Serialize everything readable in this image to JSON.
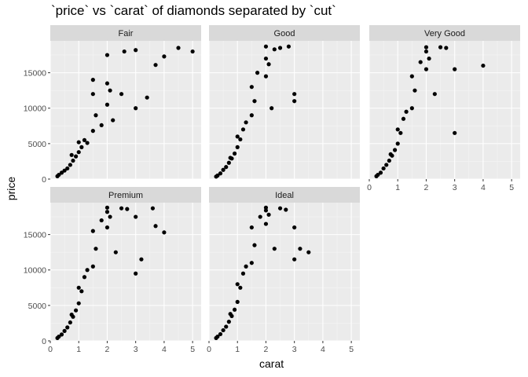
{
  "chart_data": {
    "type": "scatter",
    "title": "`price` vs `carat` of diamonds separated by `cut`",
    "xlabel": "carat",
    "ylabel": "price",
    "xlim": [
      0,
      5.3
    ],
    "ylim": [
      0,
      19500
    ],
    "x_ticks": [
      0,
      1,
      2,
      3,
      4,
      5
    ],
    "y_ticks": [
      0,
      5000,
      10000,
      15000
    ],
    "y_tick_labels": [
      "0",
      "5000",
      "10000",
      "15000"
    ],
    "grid": true,
    "point_color": "#000000",
    "panel_background": "#ebebeb",
    "strip_background": "#d9d9d9",
    "layout": {
      "ncol": 3,
      "nrow": 2
    },
    "series": [
      {
        "name": "Fair",
        "points": [
          [
            0.25,
            400
          ],
          [
            0.3,
            600
          ],
          [
            0.4,
            900
          ],
          [
            0.5,
            1200
          ],
          [
            0.6,
            1500
          ],
          [
            0.7,
            2000
          ],
          [
            0.8,
            2600
          ],
          [
            0.9,
            3200
          ],
          [
            1.0,
            3800
          ],
          [
            1.0,
            5200
          ],
          [
            1.1,
            4500
          ],
          [
            1.2,
            5500
          ],
          [
            1.5,
            6800
          ],
          [
            1.5,
            12000
          ],
          [
            1.5,
            14000
          ],
          [
            1.6,
            9000
          ],
          [
            2.0,
            10500
          ],
          [
            2.0,
            13500
          ],
          [
            2.0,
            17500
          ],
          [
            2.1,
            12500
          ],
          [
            2.5,
            12000
          ],
          [
            2.6,
            18000
          ],
          [
            3.0,
            10000
          ],
          [
            3.0,
            18200
          ],
          [
            3.4,
            11500
          ],
          [
            3.7,
            16100
          ],
          [
            4.0,
            17300
          ],
          [
            4.5,
            18500
          ],
          [
            5.0,
            18000
          ],
          [
            1.8,
            7600
          ],
          [
            1.3,
            5100
          ],
          [
            0.75,
            3400
          ],
          [
            2.2,
            8300
          ]
        ]
      },
      {
        "name": "Good",
        "points": [
          [
            0.25,
            350
          ],
          [
            0.3,
            500
          ],
          [
            0.4,
            800
          ],
          [
            0.5,
            1300
          ],
          [
            0.6,
            1700
          ],
          [
            0.7,
            2300
          ],
          [
            0.8,
            2900
          ],
          [
            0.9,
            3600
          ],
          [
            1.0,
            4500
          ],
          [
            1.0,
            6000
          ],
          [
            1.1,
            5600
          ],
          [
            1.2,
            7000
          ],
          [
            1.5,
            9000
          ],
          [
            1.5,
            13000
          ],
          [
            1.6,
            11000
          ],
          [
            2.0,
            14500
          ],
          [
            2.0,
            17000
          ],
          [
            2.0,
            18700
          ],
          [
            2.1,
            16200
          ],
          [
            2.3,
            18300
          ],
          [
            2.5,
            18500
          ],
          [
            2.8,
            18700
          ],
          [
            3.0,
            11000
          ],
          [
            3.0,
            12000
          ],
          [
            0.75,
            3000
          ],
          [
            1.3,
            8000
          ],
          [
            1.7,
            15000
          ],
          [
            2.2,
            10000
          ]
        ]
      },
      {
        "name": "Very Good",
        "points": [
          [
            0.25,
            400
          ],
          [
            0.3,
            600
          ],
          [
            0.4,
            900
          ],
          [
            0.5,
            1500
          ],
          [
            0.6,
            2000
          ],
          [
            0.7,
            2600
          ],
          [
            0.8,
            3300
          ],
          [
            0.9,
            4100
          ],
          [
            1.0,
            5000
          ],
          [
            1.0,
            7000
          ],
          [
            1.1,
            6500
          ],
          [
            1.2,
            8500
          ],
          [
            1.5,
            10000
          ],
          [
            1.5,
            14500
          ],
          [
            1.6,
            12500
          ],
          [
            2.0,
            15500
          ],
          [
            2.0,
            18000
          ],
          [
            2.0,
            18600
          ],
          [
            2.1,
            17000
          ],
          [
            2.5,
            18600
          ],
          [
            2.7,
            18500
          ],
          [
            3.0,
            15500
          ],
          [
            3.0,
            6500
          ],
          [
            4.0,
            16000
          ],
          [
            1.3,
            9500
          ],
          [
            1.8,
            16500
          ],
          [
            2.3,
            12000
          ],
          [
            0.75,
            3500
          ]
        ]
      },
      {
        "name": "Premium",
        "points": [
          [
            0.25,
            400
          ],
          [
            0.3,
            600
          ],
          [
            0.4,
            900
          ],
          [
            0.5,
            1400
          ],
          [
            0.6,
            1900
          ],
          [
            0.7,
            2600
          ],
          [
            0.8,
            3400
          ],
          [
            0.9,
            4300
          ],
          [
            1.0,
            5300
          ],
          [
            1.0,
            7500
          ],
          [
            1.1,
            7000
          ],
          [
            1.2,
            9000
          ],
          [
            1.5,
            10500
          ],
          [
            1.5,
            15500
          ],
          [
            1.6,
            13000
          ],
          [
            2.0,
            16000
          ],
          [
            2.0,
            18200
          ],
          [
            2.0,
            18800
          ],
          [
            2.1,
            17500
          ],
          [
            2.5,
            18700
          ],
          [
            2.7,
            18600
          ],
          [
            3.0,
            17500
          ],
          [
            3.0,
            9500
          ],
          [
            3.2,
            11500
          ],
          [
            3.6,
            18700
          ],
          [
            3.7,
            16200
          ],
          [
            4.0,
            15300
          ],
          [
            1.3,
            10000
          ],
          [
            1.8,
            17000
          ],
          [
            2.3,
            12500
          ],
          [
            0.75,
            3700
          ]
        ]
      },
      {
        "name": "Ideal",
        "points": [
          [
            0.25,
            400
          ],
          [
            0.3,
            600
          ],
          [
            0.4,
            950
          ],
          [
            0.5,
            1500
          ],
          [
            0.6,
            2000
          ],
          [
            0.7,
            2700
          ],
          [
            0.8,
            3500
          ],
          [
            0.9,
            4400
          ],
          [
            1.0,
            5500
          ],
          [
            1.0,
            8000
          ],
          [
            1.1,
            7500
          ],
          [
            1.2,
            9500
          ],
          [
            1.5,
            11000
          ],
          [
            1.5,
            16000
          ],
          [
            1.6,
            13500
          ],
          [
            2.0,
            16500
          ],
          [
            2.0,
            18400
          ],
          [
            2.0,
            18800
          ],
          [
            2.1,
            17800
          ],
          [
            2.5,
            18700
          ],
          [
            2.7,
            18500
          ],
          [
            3.0,
            16000
          ],
          [
            3.0,
            11500
          ],
          [
            3.2,
            13000
          ],
          [
            3.5,
            12500
          ],
          [
            1.3,
            10500
          ],
          [
            1.8,
            17500
          ],
          [
            2.3,
            13000
          ],
          [
            0.75,
            3800
          ]
        ]
      }
    ]
  }
}
